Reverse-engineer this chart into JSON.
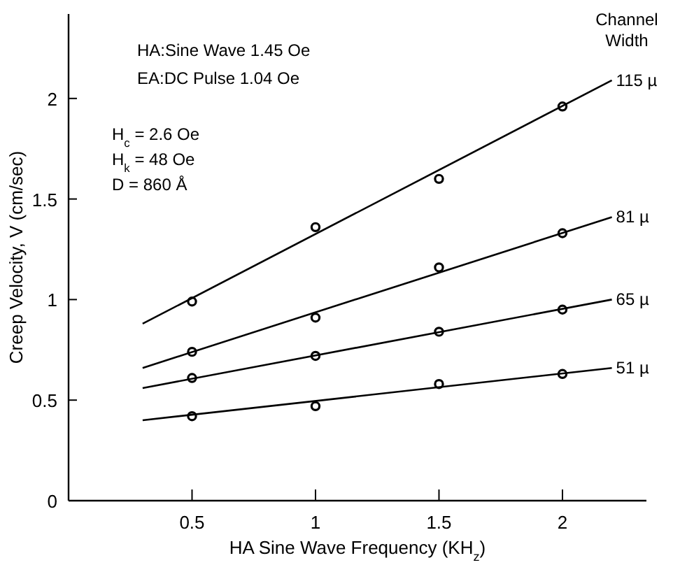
{
  "chart_data": {
    "type": "scatter",
    "xlabel": "HA Sine Wave Frequency (KH$_{z}$)",
    "ylabel": "Creep Velocity, V (cm/sec)",
    "legend_title": "Channel Width",
    "marker": "circle",
    "grid": false,
    "xlim": [
      0,
      2.34
    ],
    "ylim": [
      0,
      2.42
    ],
    "xticks": [
      0.5,
      1,
      1.5,
      2
    ],
    "yticks": [
      0,
      0.5,
      1,
      1.5,
      2
    ],
    "series": [
      {
        "color": "#000000",
        "x": [
          0.5,
          1,
          1.5,
          2
        ],
        "values": [
          0.99,
          1.36,
          1.6,
          1.96
        ]
      },
      {
        "color": "#000000",
        "x": [
          0.5,
          1,
          1.5,
          2
        ],
        "values": [
          0.74,
          0.91,
          1.16,
          1.33
        ]
      },
      {
        "color": "#000000",
        "x": [
          0.5,
          1,
          1.5,
          2
        ],
        "values": [
          0.61,
          0.72,
          0.84,
          0.95
        ]
      },
      {
        "color": "#000000",
        "x": [
          0.5,
          1,
          1.5,
          2
        ],
        "values": [
          0.42,
          0.47,
          0.58,
          0.63
        ]
      },
      {
        "type": "line",
        "name": "115 µ",
        "color": "#000000",
        "marker": "none",
        "x": [
          0.3,
          2.2
        ],
        "values": [
          0.88,
          2.09
        ]
      },
      {
        "type": "line",
        "name": "81 µ",
        "color": "#000000",
        "marker": "none",
        "x": [
          0.3,
          2.2
        ],
        "values": [
          0.66,
          1.41
        ]
      },
      {
        "type": "line",
        "name": "65 µ",
        "color": "#000000",
        "marker": "none",
        "x": [
          0.3,
          2.2
        ],
        "values": [
          0.56,
          1.0
        ]
      },
      {
        "type": "line",
        "name": "51 µ",
        "color": "#000000",
        "marker": "none",
        "x": [
          0.3,
          2.2
        ],
        "values": [
          0.4,
          0.66
        ]
      }
    ],
    "annotations": [
      "HA:Sine Wave 1.45 Oe",
      "EA:DC Pulse 1.04 Oe",
      "H$_{c}$ = 2.6 Oe",
      "H$_{k}$ = 48 Oe",
      "D = 860 Å"
    ]
  }
}
